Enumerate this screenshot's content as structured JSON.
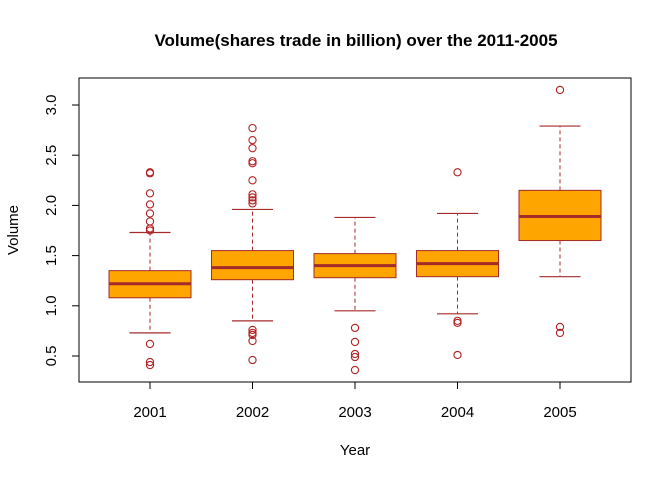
{
  "chart_data": {
    "type": "boxplot",
    "title": "Volume(shares trade in billion) over the 2011-2005",
    "xlabel": "Year",
    "ylabel": "Volume",
    "ylim": [
      0.25,
      3.25
    ],
    "yticks": [
      "0.5",
      "1.0",
      "1.5",
      "2.0",
      "2.5",
      "3.0"
    ],
    "grid": false,
    "colors": {
      "box_fill": "#FFA500",
      "median": "#A52A2A",
      "whisker": "#A52A2A",
      "outlier": "#B22222",
      "frame": "#000000"
    },
    "categories": [
      "2001",
      "2002",
      "2003",
      "2004",
      "2005"
    ],
    "boxes": [
      {
        "year": "2001",
        "lower_whisker": 0.73,
        "q1": 1.08,
        "median": 1.22,
        "q3": 1.35,
        "upper_whisker": 1.73,
        "outliers": [
          0.41,
          0.44,
          0.62,
          1.75,
          1.77,
          1.84,
          1.92,
          2.01,
          2.12,
          2.32,
          2.33
        ]
      },
      {
        "year": "2002",
        "lower_whisker": 0.85,
        "q1": 1.26,
        "median": 1.38,
        "q3": 1.55,
        "upper_whisker": 1.96,
        "outliers": [
          0.46,
          0.65,
          0.71,
          0.73,
          0.76,
          2.02,
          2.05,
          2.08,
          2.11,
          2.25,
          2.42,
          2.44,
          2.57,
          2.65,
          2.77
        ]
      },
      {
        "year": "2003",
        "lower_whisker": 0.95,
        "q1": 1.28,
        "median": 1.4,
        "q3": 1.52,
        "upper_whisker": 1.88,
        "outliers": [
          0.36,
          0.49,
          0.52,
          0.64,
          0.78
        ]
      },
      {
        "year": "2004",
        "lower_whisker": 0.92,
        "q1": 1.29,
        "median": 1.42,
        "q3": 1.55,
        "upper_whisker": 1.92,
        "outliers": [
          0.51,
          0.83,
          0.85,
          2.33
        ]
      },
      {
        "year": "2005",
        "lower_whisker": 1.29,
        "q1": 1.65,
        "median": 1.89,
        "q3": 2.15,
        "upper_whisker": 2.79,
        "outliers": [
          0.73,
          0.79,
          3.15
        ]
      }
    ]
  }
}
